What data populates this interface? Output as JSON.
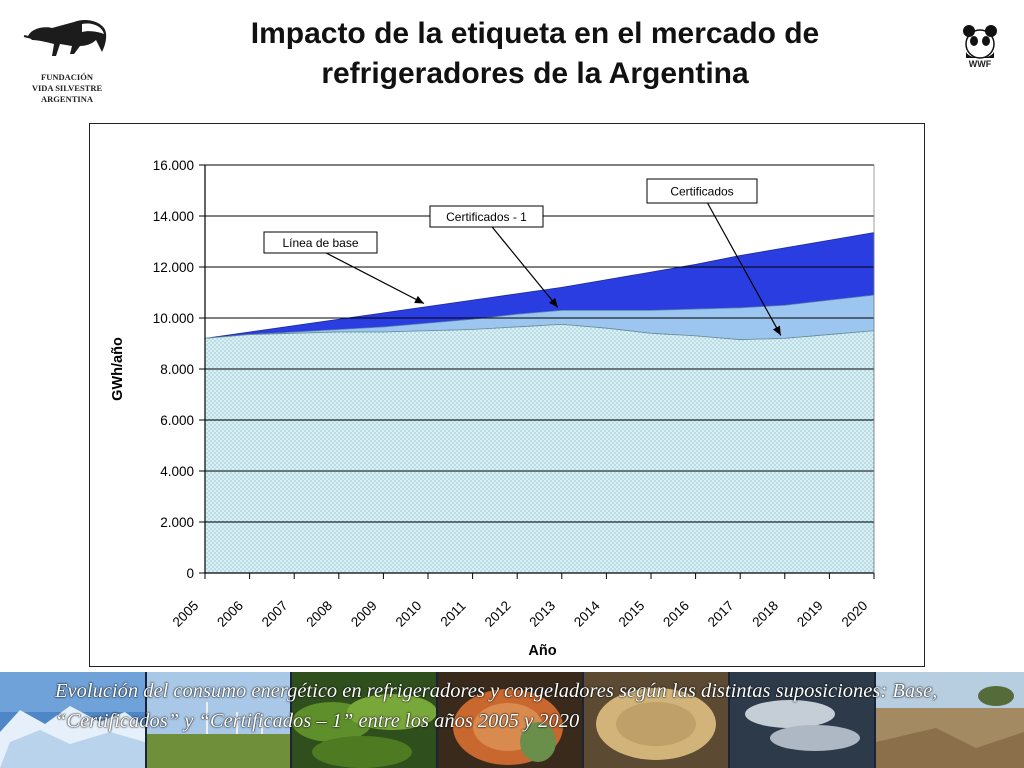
{
  "title": "Impacto de la etiqueta en el mercado de refrigeradores de la Argentina",
  "logos": {
    "left_org": "FUNDACIÓN\nVIDA SILVESTRE\nARGENTINA",
    "right_org": "WWF"
  },
  "caption": "Evolución del consumo energético en refrigeradores y congeladores según las distintas suposiciones: Base, “Certificados” y “Certificados – 1” entre los años 2005 y 2020",
  "colors": {
    "base": "#2a3de0",
    "cert1": "#9cc6ef",
    "cert": "#d6f0f5",
    "cert_dots": "#7fa9b8",
    "gridline": "#000000"
  },
  "chart_data": {
    "type": "area",
    "xlabel": "Año",
    "ylabel": "GWh/año",
    "ylim": [
      0,
      16000
    ],
    "yticks": [
      0,
      2000,
      4000,
      6000,
      8000,
      10000,
      12000,
      14000,
      16000
    ],
    "ytick_labels": [
      "0",
      "2.000",
      "4.000",
      "6.000",
      "8.000",
      "10.000",
      "12.000",
      "14.000",
      "16.000"
    ],
    "categories": [
      "2005",
      "2006",
      "2007",
      "2008",
      "2009",
      "2010",
      "2011",
      "2012",
      "2013",
      "2014",
      "2015",
      "2016",
      "2017",
      "2018",
      "2019",
      "2020"
    ],
    "series": [
      {
        "name": "Línea de base",
        "values": [
          9200,
          9450,
          9700,
          9950,
          10200,
          10450,
          10700,
          10950,
          11200,
          11500,
          11800,
          12100,
          12450,
          12750,
          13050,
          13350
        ]
      },
      {
        "name": "Certificados - 1",
        "values": [
          9200,
          9350,
          9450,
          9550,
          9650,
          9800,
          9950,
          10150,
          10300,
          10300,
          10300,
          10350,
          10400,
          10500,
          10700,
          10900
        ]
      },
      {
        "name": "Certificados",
        "values": [
          9200,
          9350,
          9400,
          9450,
          9450,
          9500,
          9550,
          9650,
          9750,
          9600,
          9400,
          9300,
          9150,
          9200,
          9350,
          9500
        ]
      }
    ],
    "annotations": [
      {
        "text": "Línea de base",
        "series": "Línea de base",
        "points_to": "2010"
      },
      {
        "text": "Certificados - 1",
        "series": "Certificados - 1",
        "points_to": "2013"
      },
      {
        "text": "Certificados",
        "series": "Certificados",
        "points_to": "2018"
      }
    ],
    "grid": "horizontal"
  }
}
